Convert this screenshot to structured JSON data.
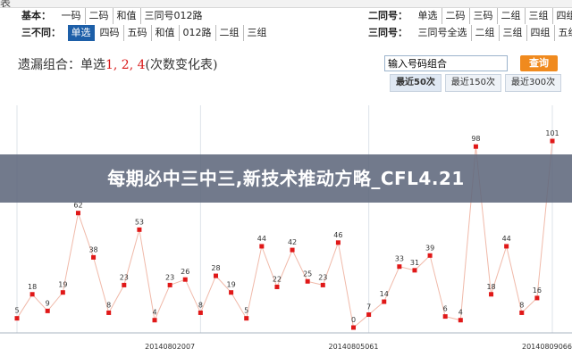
{
  "topbar": {
    "text": "表"
  },
  "filters": {
    "basic": {
      "label": "基本：",
      "options": [
        "一码",
        "二码",
        "和值",
        "三同号012路"
      ]
    },
    "three_diff": {
      "label": "三不同：",
      "options": [
        "单选",
        "四码",
        "五码",
        "和值",
        "012路",
        "二组",
        "三组"
      ],
      "selected": "单选"
    },
    "two_same": {
      "label": "二同号：",
      "options": [
        "单选",
        "二码",
        "三码",
        "二组",
        "三组",
        "四组"
      ]
    },
    "three_same": {
      "label": "三同号：",
      "options": [
        "三同号全选",
        "二组",
        "三组",
        "四组",
        "五组"
      ]
    }
  },
  "chart_title": {
    "prefix": "遗漏组合：单选",
    "highlight": "1, 2, 4",
    "suffix": "(次数变化表)"
  },
  "search": {
    "placeholder": "输入号码组合",
    "button": "查询"
  },
  "tabs": [
    "最近50次",
    "最近150次",
    "最近300次"
  ],
  "overlay_text": "每期必中三中三,新技术推动方略_CFL4.21",
  "colors": {
    "line": "#f0b9a9",
    "marker": "#e01818",
    "accent": "#1d5fa8",
    "button": "#f08a1e"
  },
  "chart_data": {
    "type": "line",
    "values": [
      5,
      18,
      9,
      19,
      62,
      38,
      8,
      23,
      53,
      4,
      23,
      26,
      8,
      28,
      19,
      5,
      44,
      22,
      42,
      25,
      23,
      46,
      0,
      7,
      14,
      33,
      31,
      39,
      6,
      4,
      98,
      18,
      44,
      8,
      16,
      101
    ],
    "x_tick_labels": [
      "20140802007",
      "20140805061",
      "20140809066"
    ],
    "data_labels": true,
    "grid": "vertical"
  }
}
